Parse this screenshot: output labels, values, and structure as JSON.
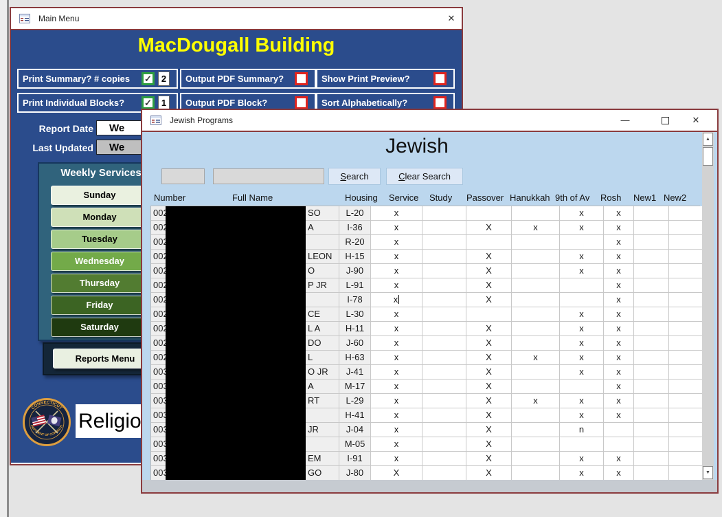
{
  "colors": {
    "main_menu_blue": "#2b4c8c",
    "window_border_maroon": "#8a3b3e",
    "heading_yellow": "#ffff00",
    "jewish_body_blue": "#bcd7ee",
    "checkbox_checked_green": "#2f9e41",
    "checkbox_unchecked_red": "#e0251f",
    "redaction_black": "#000000"
  },
  "main_menu": {
    "title_bar": {
      "title": "Main Menu",
      "close_glyph": "✕"
    },
    "heading": "MacDougall Building",
    "options": [
      {
        "label": "Print Summary?  # copies",
        "checked": true,
        "count": "2"
      },
      {
        "label": "Output PDF Summary?",
        "checked": false
      },
      {
        "label": "Show Print Preview?",
        "checked": false
      },
      {
        "label": "Print Individual Blocks?",
        "checked": true,
        "count": "1"
      },
      {
        "label": "Output PDF Block?",
        "checked": false
      },
      {
        "label": "Sort Alphabetically?",
        "checked": false
      }
    ],
    "report_date": {
      "label": "Report Date",
      "value": "We"
    },
    "last_updated": {
      "label": "Last Updated",
      "value": "We"
    },
    "weekly_services": {
      "title": "Weekly Services",
      "days": [
        {
          "label": "Sunday",
          "bg": "#eaf1e0",
          "fg": "#000000"
        },
        {
          "label": "Monday",
          "bg": "#cfe0b8",
          "fg": "#000000"
        },
        {
          "label": "Tuesday",
          "bg": "#a6cc8a",
          "fg": "#000000"
        },
        {
          "label": "Wednesday",
          "bg": "#73aa49",
          "fg": "#ffffff"
        },
        {
          "label": "Thursday",
          "bg": "#527c31",
          "fg": "#ffffff"
        },
        {
          "label": "Friday",
          "bg": "#3c6423",
          "fg": "#ffffff"
        },
        {
          "label": "Saturday",
          "bg": "#1f3a10",
          "fg": "#ffffff"
        }
      ]
    },
    "reports_menu_label": "Reports Menu",
    "religious_label": "Religio",
    "seal": {
      "ring_top": "CONNECTICUT",
      "ring_bottom": "DEPARTMENT OF CORRECTION"
    }
  },
  "jewish": {
    "title_bar": {
      "title": "Jewish Programs",
      "minimize_glyph": "—",
      "close_glyph": "✕"
    },
    "heading": "Jewish",
    "search": {
      "box1_value": "",
      "box2_value": "",
      "search_label": "Search",
      "clear_label": "Clear Search"
    },
    "columns": [
      "Number",
      "Full Name",
      "Housing",
      "Service",
      "Study",
      "Passover",
      "Hanukkah",
      "9th of Av",
      "Rosh",
      "New1",
      "New2"
    ],
    "rows": [
      {
        "number": "002",
        "name": "SO",
        "housing": "L-20",
        "service": "x",
        "study": "",
        "passover": "",
        "hanukkah": "",
        "ninth_av": "x",
        "rosh": "x",
        "new1": "",
        "new2": ""
      },
      {
        "number": "002",
        "name": "A",
        "housing": "I-36",
        "service": "x",
        "study": "",
        "passover": "X",
        "hanukkah": "x",
        "ninth_av": "x",
        "rosh": "x",
        "new1": "",
        "new2": ""
      },
      {
        "number": "002",
        "name": "",
        "housing": "R-20",
        "service": "x",
        "study": "",
        "passover": "",
        "hanukkah": "",
        "ninth_av": "",
        "rosh": "x",
        "new1": "",
        "new2": ""
      },
      {
        "number": "002",
        "name": "LEON",
        "housing": "H-15",
        "service": "x",
        "study": "",
        "passover": "X",
        "hanukkah": "",
        "ninth_av": "x",
        "rosh": "x",
        "new1": "",
        "new2": ""
      },
      {
        "number": "002",
        "name": "O",
        "housing": "J-90",
        "service": "x",
        "study": "",
        "passover": "X",
        "hanukkah": "",
        "ninth_av": "x",
        "rosh": "x",
        "new1": "",
        "new2": ""
      },
      {
        "number": "002",
        "name": "P JR",
        "housing": "L-91",
        "service": "x",
        "study": "",
        "passover": "X",
        "hanukkah": "",
        "ninth_av": "",
        "rosh": "x",
        "new1": "",
        "new2": ""
      },
      {
        "number": "002",
        "name": "",
        "housing": "I-78",
        "service": "x",
        "study": "",
        "passover": "X",
        "hanukkah": "",
        "ninth_av": "",
        "rosh": "x",
        "new1": "",
        "new2": "",
        "caret": true
      },
      {
        "number": "002",
        "name": "CE",
        "housing": "L-30",
        "service": "x",
        "study": "",
        "passover": "",
        "hanukkah": "",
        "ninth_av": "x",
        "rosh": "x",
        "new1": "",
        "new2": ""
      },
      {
        "number": "002",
        "name": "L A",
        "housing": "H-11",
        "service": "x",
        "study": "",
        "passover": "X",
        "hanukkah": "",
        "ninth_av": "x",
        "rosh": "x",
        "new1": "",
        "new2": ""
      },
      {
        "number": "002",
        "name": "DO",
        "housing": "J-60",
        "service": "x",
        "study": "",
        "passover": "X",
        "hanukkah": "",
        "ninth_av": "x",
        "rosh": "x",
        "new1": "",
        "new2": ""
      },
      {
        "number": "002",
        "name": "L",
        "housing": "H-63",
        "service": "x",
        "study": "",
        "passover": "X",
        "hanukkah": "x",
        "ninth_av": "x",
        "rosh": "x",
        "new1": "",
        "new2": ""
      },
      {
        "number": "003",
        "name": "O JR",
        "housing": "J-41",
        "service": "x",
        "study": "",
        "passover": "X",
        "hanukkah": "",
        "ninth_av": "x",
        "rosh": "x",
        "new1": "",
        "new2": ""
      },
      {
        "number": "003",
        "name": "A",
        "housing": "M-17",
        "service": "x",
        "study": "",
        "passover": "X",
        "hanukkah": "",
        "ninth_av": "",
        "rosh": "x",
        "new1": "",
        "new2": ""
      },
      {
        "number": "003",
        "name": "RT",
        "housing": "L-29",
        "service": "x",
        "study": "",
        "passover": "X",
        "hanukkah": "x",
        "ninth_av": "x",
        "rosh": "x",
        "new1": "",
        "new2": ""
      },
      {
        "number": "003",
        "name": "",
        "housing": "H-41",
        "service": "x",
        "study": "",
        "passover": "X",
        "hanukkah": "",
        "ninth_av": "x",
        "rosh": "x",
        "new1": "",
        "new2": ""
      },
      {
        "number": "003",
        "name": "JR",
        "housing": "J-04",
        "service": "x",
        "study": "",
        "passover": "X",
        "hanukkah": "",
        "ninth_av": "n",
        "rosh": "",
        "new1": "",
        "new2": ""
      },
      {
        "number": "003",
        "name": "",
        "housing": "M-05",
        "service": "x",
        "study": "",
        "passover": "X",
        "hanukkah": "",
        "ninth_av": "",
        "rosh": "",
        "new1": "",
        "new2": ""
      },
      {
        "number": "003",
        "name": "EM",
        "housing": "I-91",
        "service": "x",
        "study": "",
        "passover": "X",
        "hanukkah": "",
        "ninth_av": "x",
        "rosh": "x",
        "new1": "",
        "new2": ""
      },
      {
        "number": "003",
        "name": "GO",
        "housing": "J-80",
        "service": "X",
        "study": "",
        "passover": "X",
        "hanukkah": "",
        "ninth_av": "x",
        "rosh": "x",
        "new1": "",
        "new2": ""
      }
    ]
  }
}
